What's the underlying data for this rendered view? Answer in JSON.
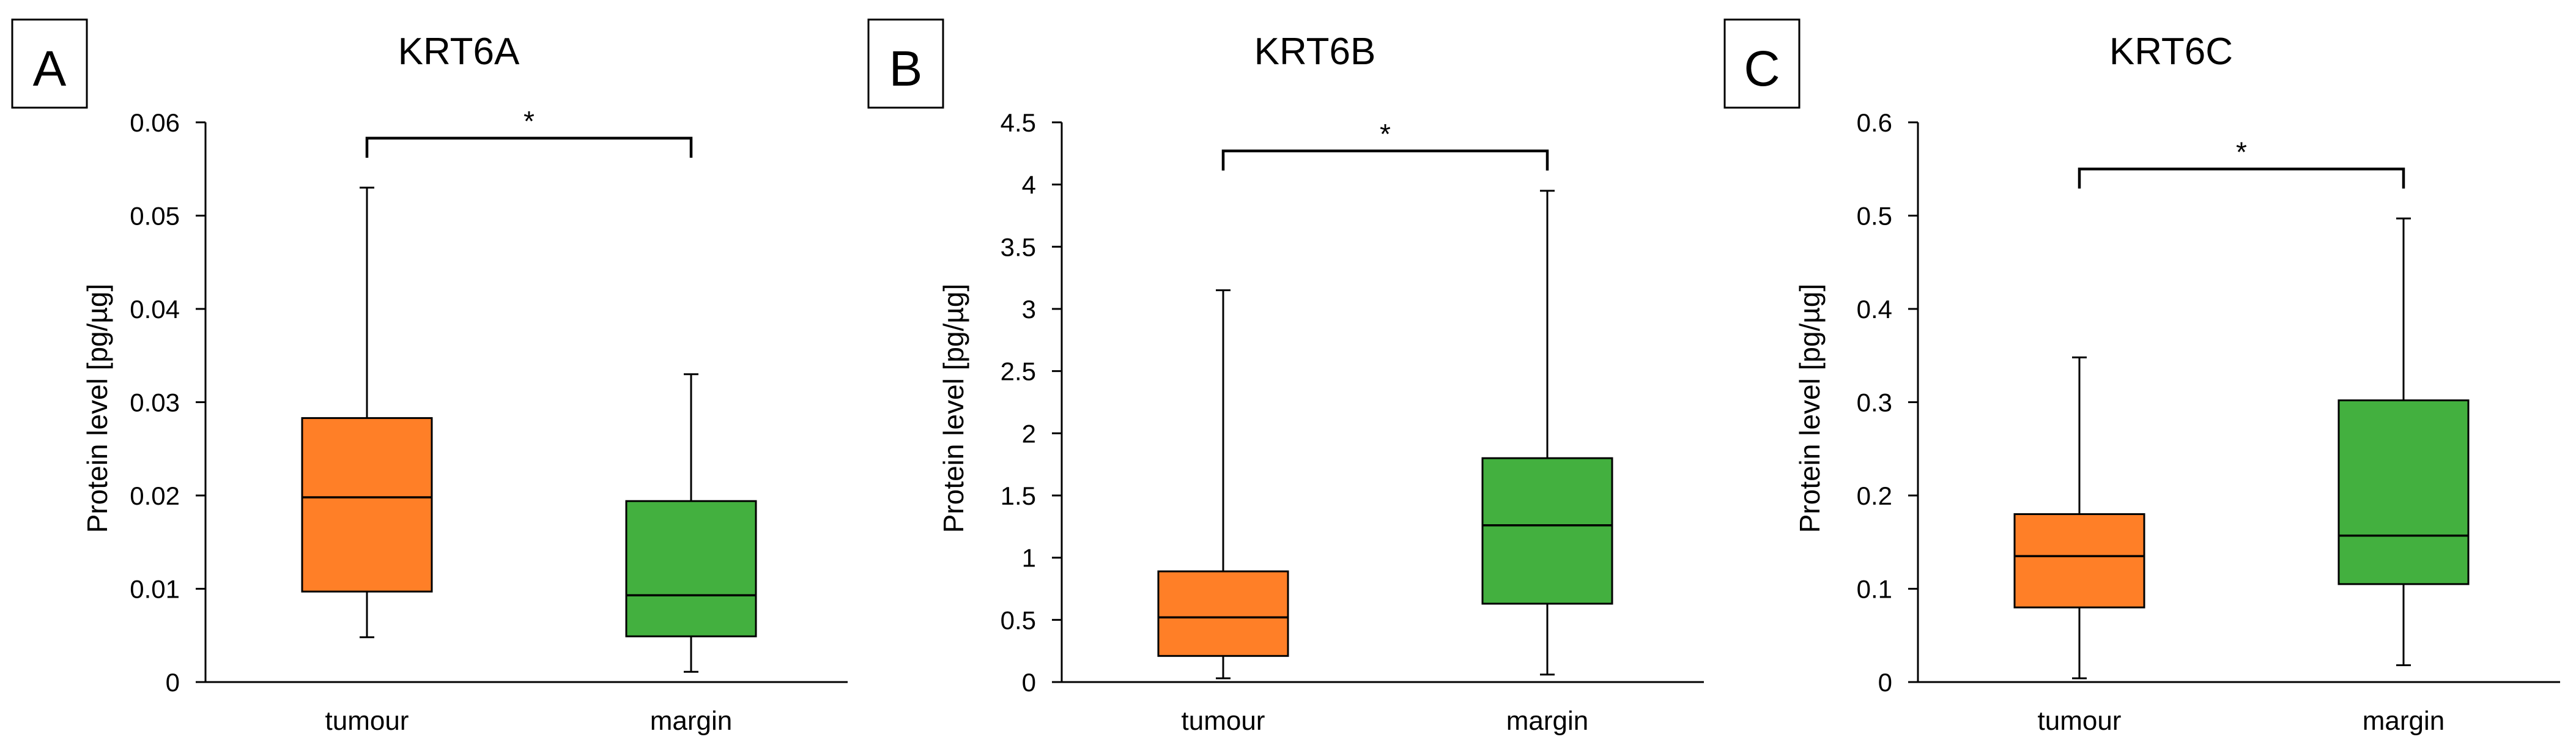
{
  "chart_data": [
    {
      "type": "box",
      "panel_label": "A",
      "title": "KRT6A",
      "ylabel": "Protein level [pg/µg]",
      "ylim": [
        0,
        0.06
      ],
      "yticks": [
        0,
        0.01,
        0.02,
        0.03,
        0.04,
        0.05,
        0.06
      ],
      "ytick_labels": [
        "0",
        "0.01",
        "0.02",
        "0.03",
        "0.04",
        "0.05",
        "0.06"
      ],
      "categories": [
        "tumour",
        "margin"
      ],
      "boxes": [
        {
          "name": "tumour",
          "min": 0.0048,
          "q1": 0.0097,
          "median": 0.0198,
          "q3": 0.0283,
          "max": 0.053,
          "color": "#FF7F27"
        },
        {
          "name": "margin",
          "min": 0.0011,
          "q1": 0.0049,
          "median": 0.0093,
          "q3": 0.0194,
          "max": 0.033,
          "color": "#43B03F"
        }
      ],
      "significance": {
        "label": "*",
        "level": 0.0583
      }
    },
    {
      "type": "box",
      "panel_label": "B",
      "title": "KRT6B",
      "ylabel": "Protein level [pg/µg]",
      "ylim": [
        0,
        4.5
      ],
      "yticks": [
        0,
        0.5,
        1,
        1.5,
        2,
        2.5,
        3,
        3.5,
        4,
        4.5
      ],
      "ytick_labels": [
        "0",
        "0.5",
        "1",
        "1.5",
        "2",
        "2.5",
        "3",
        "3.5",
        "4",
        "4.5"
      ],
      "categories": [
        "tumour",
        "margin"
      ],
      "boxes": [
        {
          "name": "tumour",
          "min": 0.03,
          "q1": 0.21,
          "median": 0.52,
          "q3": 0.89,
          "max": 3.15,
          "color": "#FF7F27"
        },
        {
          "name": "margin",
          "min": 0.06,
          "q1": 0.63,
          "median": 1.26,
          "q3": 1.8,
          "max": 3.95,
          "color": "#43B03F"
        }
      ],
      "significance": {
        "label": "*",
        "level": 4.27
      }
    },
    {
      "type": "box",
      "panel_label": "C",
      "title": "KRT6C",
      "ylabel": "Protein level [pg/µg]",
      "ylim": [
        0,
        0.6
      ],
      "yticks": [
        0,
        0.1,
        0.2,
        0.3,
        0.4,
        0.5,
        0.6
      ],
      "ytick_labels": [
        "0",
        "0.1",
        "0.2",
        "0.3",
        "0.4",
        "0.5",
        "0.6"
      ],
      "categories": [
        "tumour",
        "margin"
      ],
      "boxes": [
        {
          "name": "tumour",
          "min": 0.004,
          "q1": 0.08,
          "median": 0.135,
          "q3": 0.18,
          "max": 0.348,
          "color": "#FF7F27"
        },
        {
          "name": "margin",
          "min": 0.018,
          "q1": 0.105,
          "median": 0.157,
          "q3": 0.302,
          "max": 0.497,
          "color": "#43B03F"
        }
      ],
      "significance": {
        "label": "*",
        "level": 0.55
      }
    }
  ]
}
